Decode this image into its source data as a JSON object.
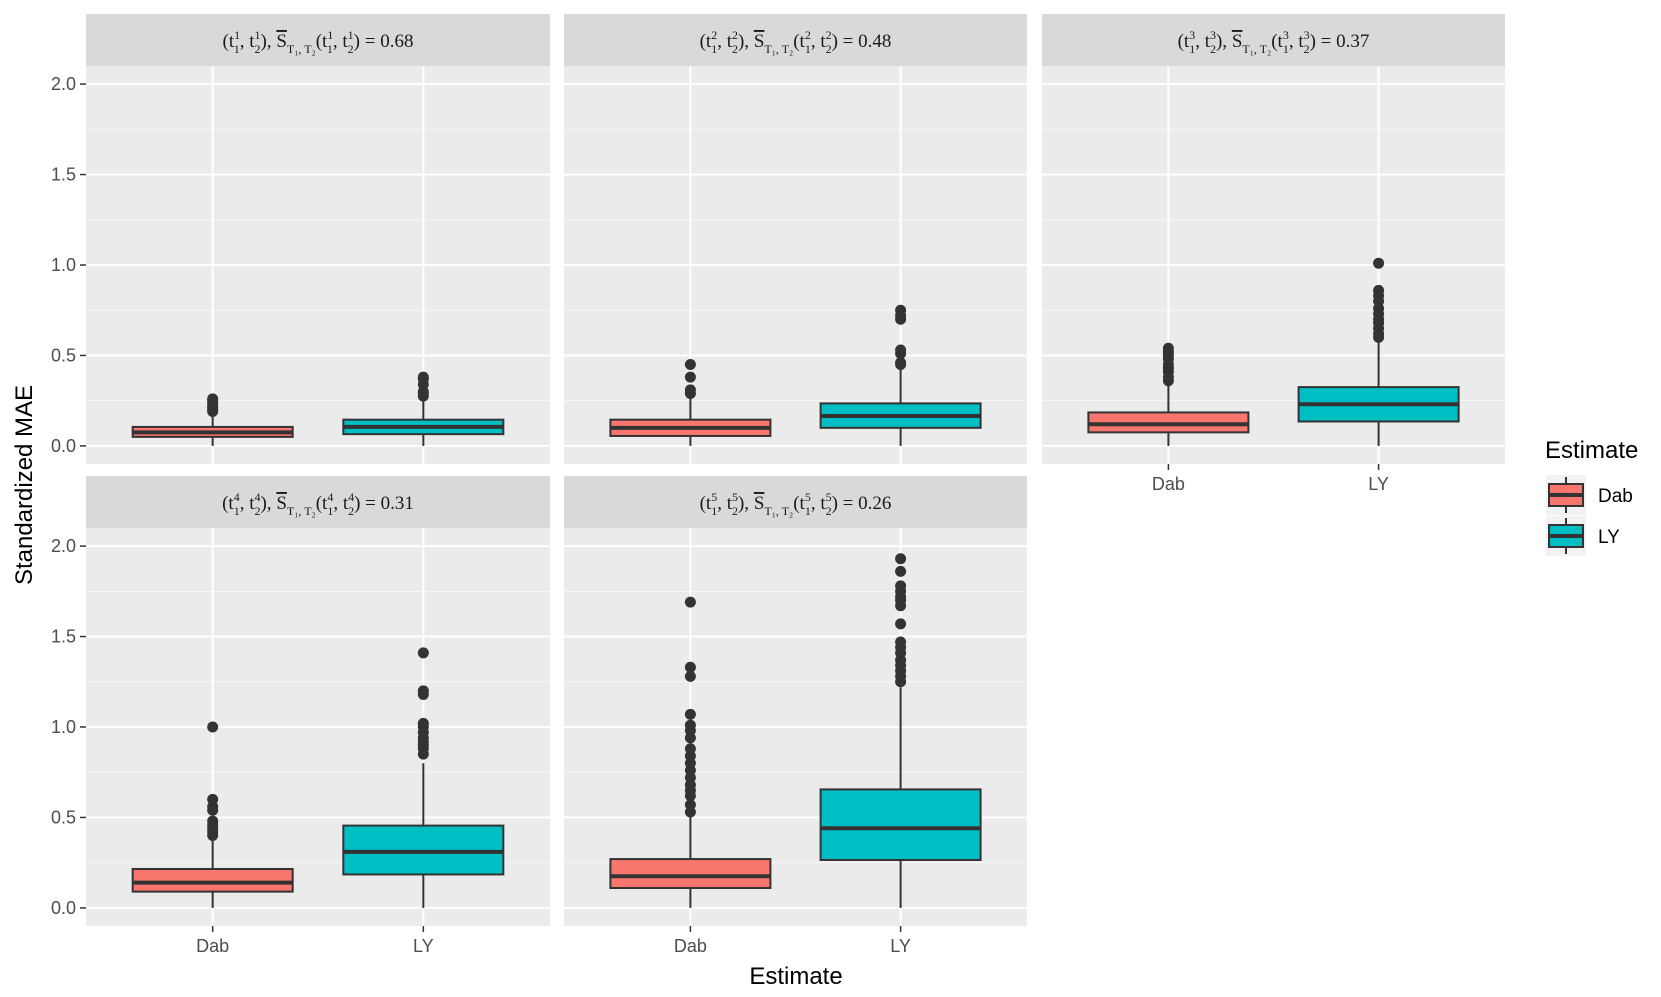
{
  "chart_data": {
    "type": "boxplot",
    "xlabel": "Estimate",
    "ylabel": "Standardized MAE",
    "categories": [
      "Dab",
      "LY"
    ],
    "ylim": [
      -0.1,
      2.1
    ],
    "yticks": [
      0.0,
      0.5,
      1.0,
      1.5,
      2.0
    ],
    "ytick_labels": [
      "0.0",
      "0.5",
      "1.0",
      "1.5",
      "2.0"
    ],
    "legend": {
      "title": "Estimate",
      "position": "right",
      "entries": [
        {
          "label": "Dab",
          "color": "#f8766d"
        },
        {
          "label": "LY",
          "color": "#00bfc4"
        }
      ]
    },
    "colors": {
      "Dab": "#f8766d",
      "LY": "#00bfc4"
    },
    "panels": [
      {
        "index": 1,
        "strip": {
          "lead": "(t",
          "sub1": "1",
          "sup1": "1",
          "mid": ", t",
          "sub2": "2",
          "sup2": "1",
          "close": "),",
          "sbar": "S",
          "tsub": "T₁, T₂",
          "open": "(t",
          "sub3": "1",
          "sup3": "1",
          "mid2": ", t",
          "sub4": "2",
          "sup4": "1",
          "tail": ") = 0.68"
        },
        "boxes": [
          {
            "category": "Dab",
            "lower_whisker": 0.0,
            "q1": 0.05,
            "median": 0.075,
            "q3": 0.105,
            "upper_whisker": 0.175,
            "outliers": [
              0.19,
              0.2,
              0.21,
              0.22,
              0.235,
              0.25,
              0.26
            ]
          },
          {
            "category": "LY",
            "lower_whisker": 0.0,
            "q1": 0.065,
            "median": 0.105,
            "q3": 0.145,
            "upper_whisker": 0.26,
            "outliers": [
              0.275,
              0.29,
              0.3,
              0.34,
              0.37,
              0.38
            ]
          }
        ]
      },
      {
        "index": 2,
        "strip": {
          "lead": "(t",
          "sub1": "1",
          "sup1": "2",
          "mid": ", t",
          "sub2": "2",
          "sup2": "2",
          "close": "),",
          "sbar": "S",
          "tsub": "T₁, T₂",
          "open": "(t",
          "sub3": "1",
          "sup3": "2",
          "mid2": ", t",
          "sub4": "2",
          "sup4": "2",
          "tail": ") = 0.48"
        },
        "boxes": [
          {
            "category": "Dab",
            "lower_whisker": 0.0,
            "q1": 0.055,
            "median": 0.1,
            "q3": 0.145,
            "upper_whisker": 0.27,
            "outliers": [
              0.29,
              0.31,
              0.38,
              0.45
            ]
          },
          {
            "category": "LY",
            "lower_whisker": 0.0,
            "q1": 0.1,
            "median": 0.165,
            "q3": 0.235,
            "upper_whisker": 0.43,
            "outliers": [
              0.45,
              0.46,
              0.51,
              0.53,
              0.7,
              0.72,
              0.75
            ]
          }
        ]
      },
      {
        "index": 3,
        "strip": {
          "lead": "(t",
          "sub1": "1",
          "sup1": "3",
          "mid": ", t",
          "sub2": "2",
          "sup2": "3",
          "close": "),",
          "sbar": "S",
          "tsub": "T₁, T₂",
          "open": "(t",
          "sub3": "1",
          "sup3": "3",
          "mid2": ", t",
          "sub4": "2",
          "sup4": "3",
          "tail": ") = 0.37"
        },
        "boxes": [
          {
            "category": "Dab",
            "lower_whisker": 0.0,
            "q1": 0.075,
            "median": 0.12,
            "q3": 0.185,
            "upper_whisker": 0.34,
            "outliers": [
              0.36,
              0.38,
              0.41,
              0.43,
              0.45,
              0.48,
              0.5,
              0.52,
              0.54
            ]
          },
          {
            "category": "LY",
            "lower_whisker": 0.0,
            "q1": 0.135,
            "median": 0.23,
            "q3": 0.325,
            "upper_whisker": 0.58,
            "outliers": [
              0.6,
              0.62,
              0.65,
              0.68,
              0.7,
              0.73,
              0.76,
              0.8,
              0.83,
              0.86,
              1.01
            ]
          }
        ]
      },
      {
        "index": 4,
        "strip": {
          "lead": "(t",
          "sub1": "1",
          "sup1": "4",
          "mid": ", t",
          "sub2": "2",
          "sup2": "4",
          "close": "),",
          "sbar": "S",
          "tsub": "T₁, T₂",
          "open": "(t",
          "sub3": "1",
          "sup3": "4",
          "mid2": ", t",
          "sub4": "2",
          "sup4": "4",
          "tail": ") = 0.31"
        },
        "boxes": [
          {
            "category": "Dab",
            "lower_whisker": 0.0,
            "q1": 0.09,
            "median": 0.14,
            "q3": 0.215,
            "upper_whisker": 0.38,
            "outliers": [
              0.4,
              0.42,
              0.44,
              0.46,
              0.48,
              0.54,
              0.56,
              0.6,
              1.0
            ]
          },
          {
            "category": "LY",
            "lower_whisker": 0.0,
            "q1": 0.185,
            "median": 0.31,
            "q3": 0.455,
            "upper_whisker": 0.8,
            "outliers": [
              0.85,
              0.88,
              0.9,
              0.92,
              0.94,
              0.97,
              1.0,
              1.02,
              1.18,
              1.2,
              1.41
            ]
          }
        ]
      },
      {
        "index": 5,
        "strip": {
          "lead": "(t",
          "sub1": "1",
          "sup1": "5",
          "mid": ", t",
          "sub2": "2",
          "sup2": "5",
          "close": "),",
          "sbar": "S",
          "tsub": "T₁, T₂",
          "open": "(t",
          "sub3": "1",
          "sup3": "5",
          "mid2": ", t",
          "sub4": "2",
          "sup4": "5",
          "tail": ") = 0.26"
        },
        "boxes": [
          {
            "category": "Dab",
            "lower_whisker": 0.0,
            "q1": 0.11,
            "median": 0.175,
            "q3": 0.27,
            "upper_whisker": 0.51,
            "outliers": [
              0.53,
              0.57,
              0.62,
              0.65,
              0.68,
              0.72,
              0.76,
              0.8,
              0.84,
              0.88,
              0.94,
              0.98,
              1.01,
              1.07,
              1.28,
              1.33,
              1.69
            ]
          },
          {
            "category": "LY",
            "lower_whisker": 0.0,
            "q1": 0.265,
            "median": 0.44,
            "q3": 0.655,
            "upper_whisker": 1.22,
            "outliers": [
              1.25,
              1.28,
              1.31,
              1.34,
              1.37,
              1.41,
              1.44,
              1.47,
              1.57,
              1.67,
              1.7,
              1.72,
              1.75,
              1.78,
              1.86,
              1.93
            ]
          }
        ]
      }
    ]
  }
}
